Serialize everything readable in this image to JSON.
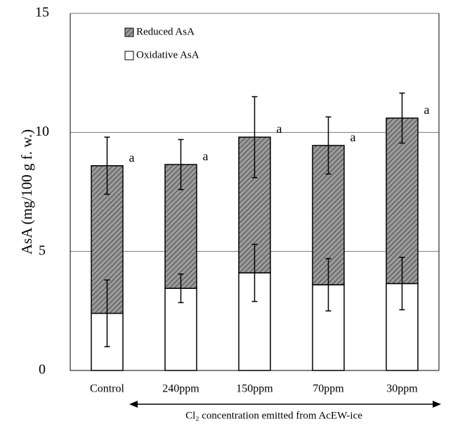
{
  "chart_data": {
    "type": "stacked_bar",
    "ylabel": "AsA (mg/100 g f. w.)",
    "xlabel": "Cl₂ concentration emitted from AcEW-ice",
    "categories": [
      "Control",
      "240ppm",
      "150ppm",
      "70ppm",
      "30ppm"
    ],
    "series": [
      {
        "name": "Oxidative AsA",
        "color": "#ffffff",
        "values": [
          2.4,
          3.45,
          4.1,
          3.6,
          3.65
        ],
        "errors": [
          1.4,
          0.6,
          1.2,
          1.1,
          1.1
        ]
      },
      {
        "name": "Reduced AsA",
        "color": "#888888",
        "pattern": "hatch",
        "values": [
          6.2,
          5.2,
          5.7,
          5.85,
          6.95
        ],
        "errors": [
          1.2,
          1.05,
          1.7,
          1.2,
          1.05
        ]
      }
    ],
    "letters": [
      "a",
      "a",
      "a",
      "a",
      "a"
    ],
    "ylim": [
      0,
      15
    ],
    "yticks": [
      0,
      5,
      10,
      15
    ],
    "grid": true,
    "legend": "upper left"
  }
}
